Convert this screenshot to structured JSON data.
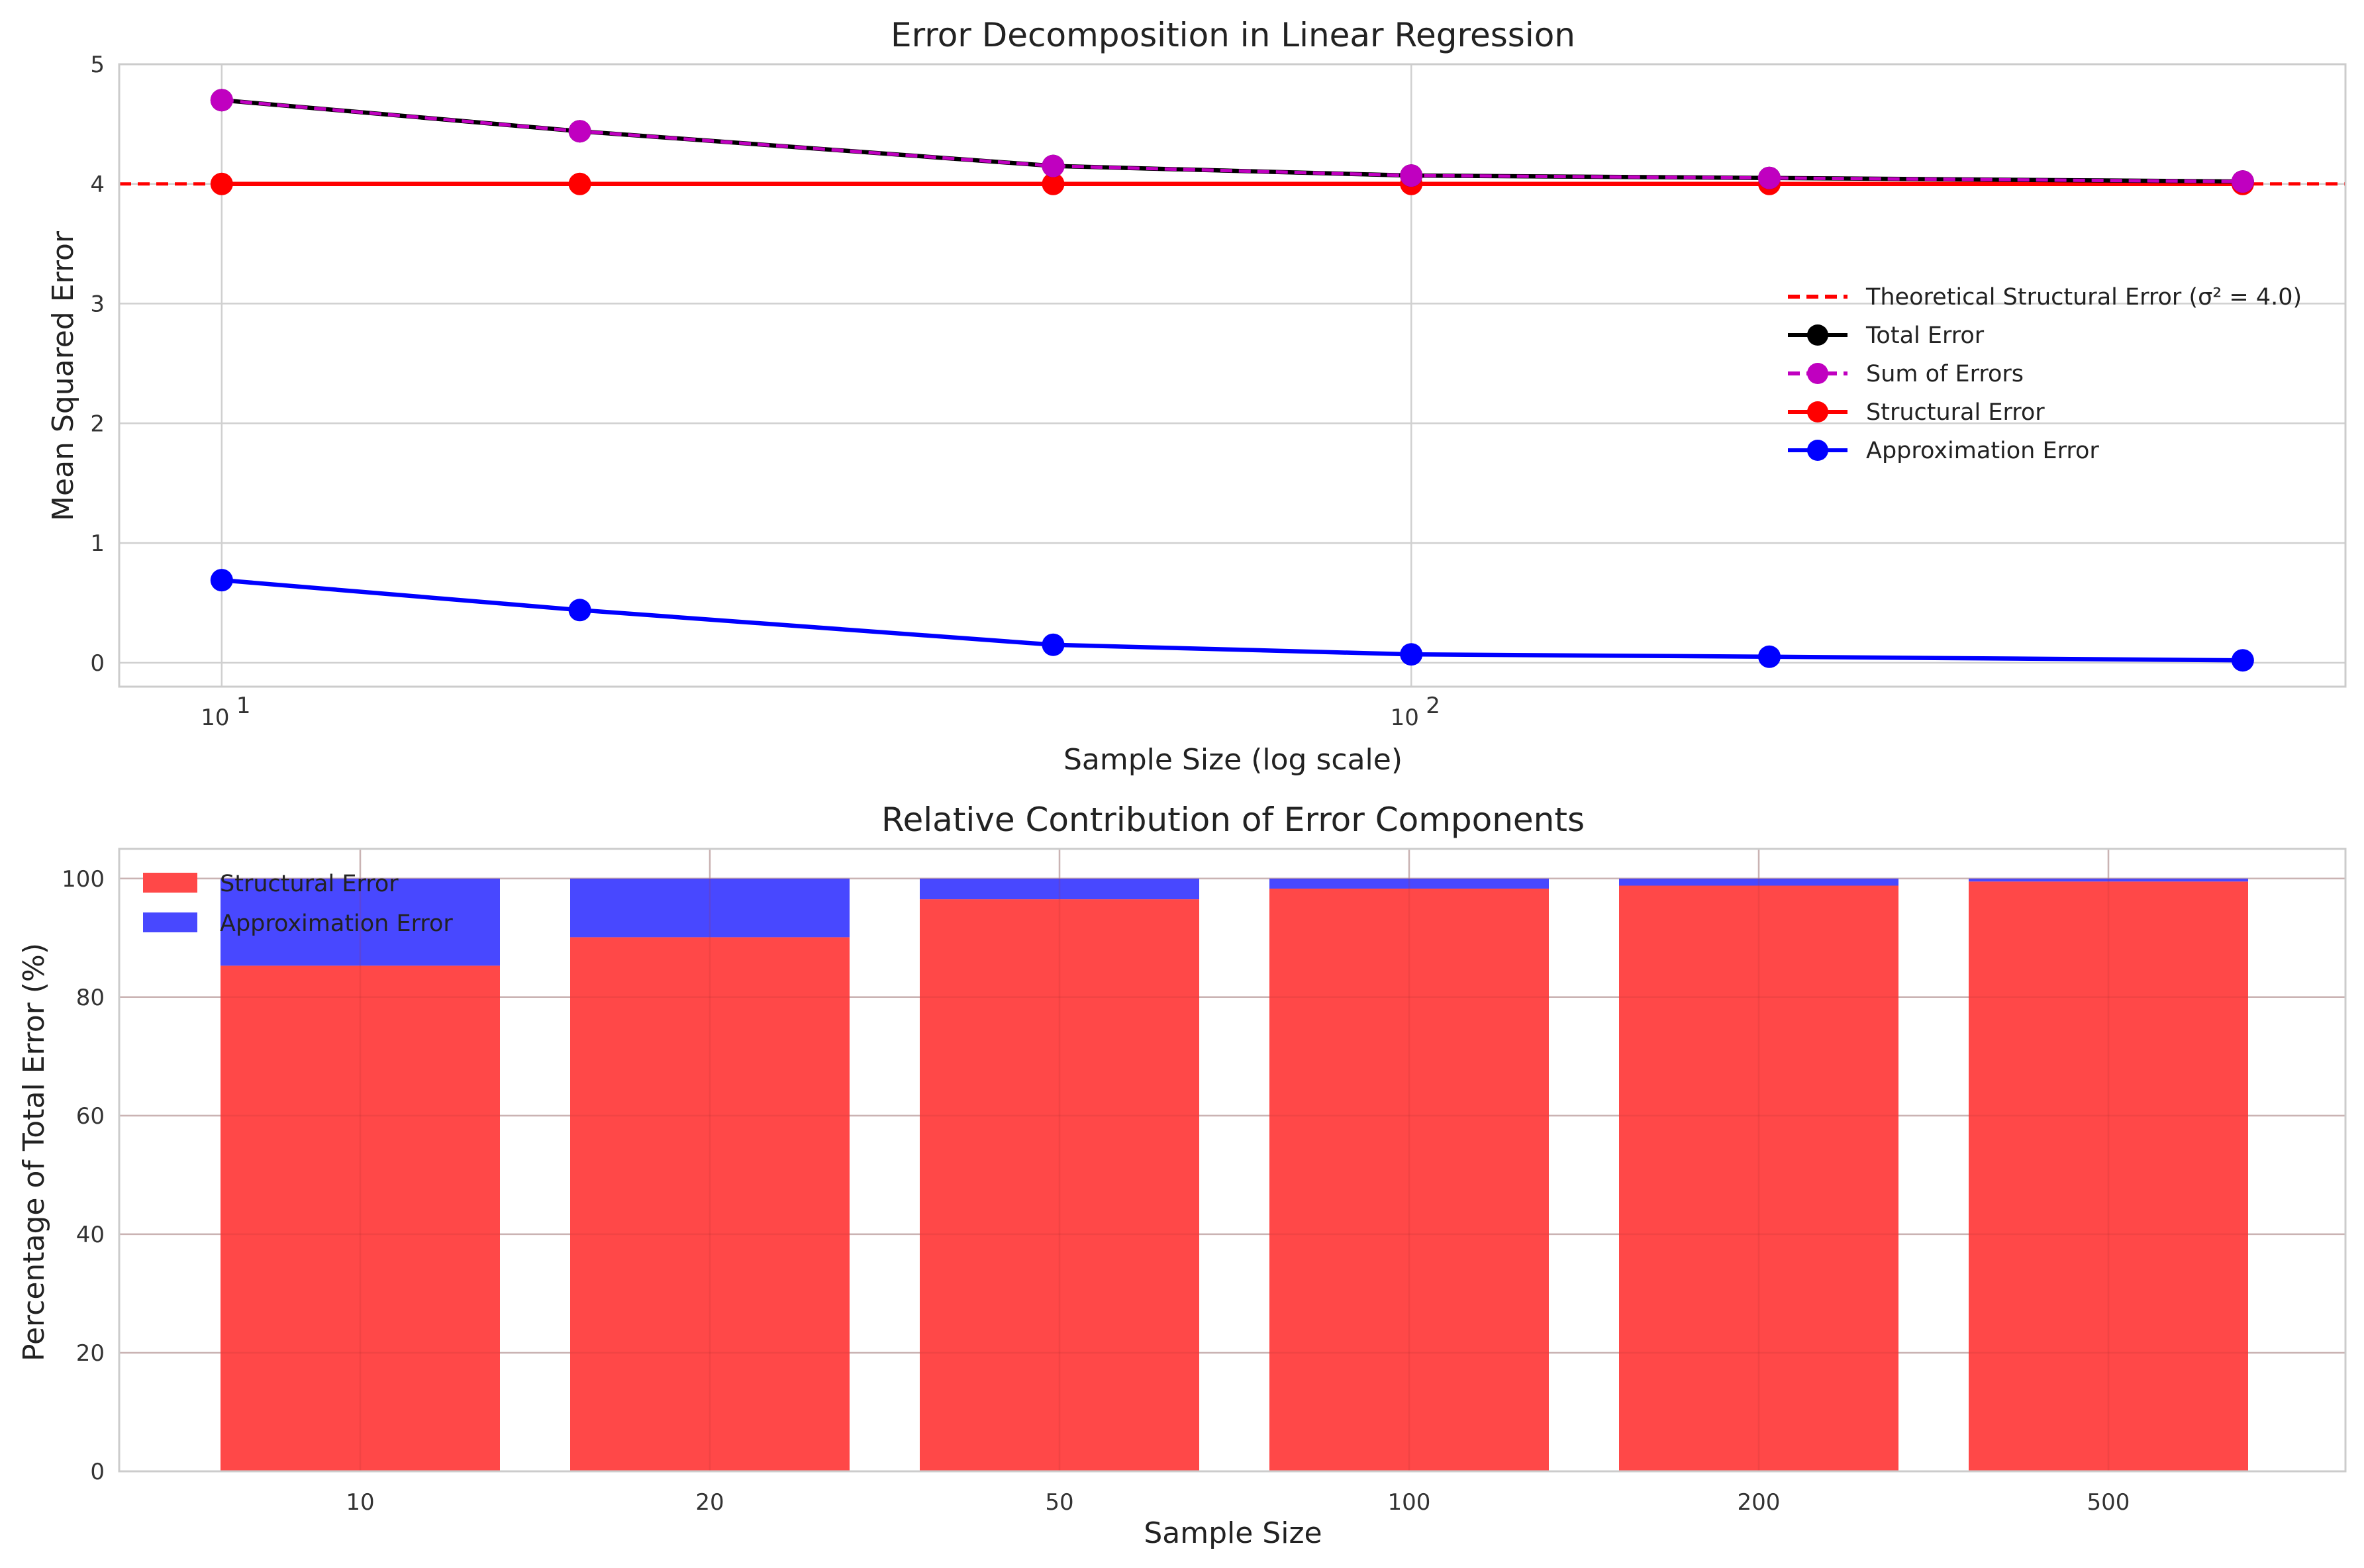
{
  "chart_data": [
    {
      "type": "line",
      "title": "Error Decomposition in Linear Regression",
      "xlabel": "Sample Size (log scale)",
      "ylabel": "Mean Squared Error",
      "x_scale": "log",
      "x_ticks": [
        {
          "value": 10,
          "base": "10",
          "exp": "1"
        },
        {
          "value": 100,
          "base": "10",
          "exp": "2"
        }
      ],
      "y_ticks": [
        "0",
        "1",
        "2",
        "3",
        "4",
        "5"
      ],
      "xlim": [
        8.2,
        610
      ],
      "ylim": [
        -0.2,
        5
      ],
      "grid": true,
      "legend_position": "center-right",
      "x": [
        10,
        20,
        50,
        100,
        200,
        500
      ],
      "reference_line": {
        "name": "Theoretical Structural Error (σ² = 4.0)",
        "y": 4.0,
        "color": "#ff0000",
        "style": "dashed"
      },
      "series": [
        {
          "name": "Total Error",
          "color": "#000000",
          "style": "solid",
          "values": [
            4.7,
            4.44,
            4.15,
            4.07,
            4.05,
            4.02
          ]
        },
        {
          "name": "Sum of Errors",
          "color": "#c000c0",
          "style": "dashed",
          "values": [
            4.7,
            4.44,
            4.15,
            4.07,
            4.05,
            4.02
          ]
        },
        {
          "name": "Structural Error",
          "color": "#ff0000",
          "style": "solid",
          "values": [
            4.0,
            4.0,
            4.0,
            4.0,
            4.0,
            4.0
          ]
        },
        {
          "name": "Approximation Error",
          "color": "#0000ff",
          "style": "solid",
          "values": [
            0.69,
            0.44,
            0.15,
            0.07,
            0.05,
            0.02
          ]
        }
      ]
    },
    {
      "type": "bar",
      "stacked": true,
      "title": "Relative Contribution of Error Components",
      "xlabel": "Sample Size",
      "ylabel": "Percentage of Total Error (%)",
      "categories": [
        "10",
        "20",
        "50",
        "100",
        "200",
        "500"
      ],
      "y_ticks": [
        "0",
        "20",
        "40",
        "60",
        "80",
        "100"
      ],
      "ylim": [
        0,
        105
      ],
      "grid": true,
      "legend_position": "top-left",
      "series": [
        {
          "name": "Structural Error",
          "color": "#ff4848",
          "values": [
            85.3,
            90.1,
            96.5,
            98.3,
            98.8,
            99.5
          ]
        },
        {
          "name": "Approximation Error",
          "color": "#4848ff",
          "values": [
            14.7,
            9.9,
            3.5,
            1.7,
            1.2,
            0.5
          ]
        }
      ]
    }
  ]
}
